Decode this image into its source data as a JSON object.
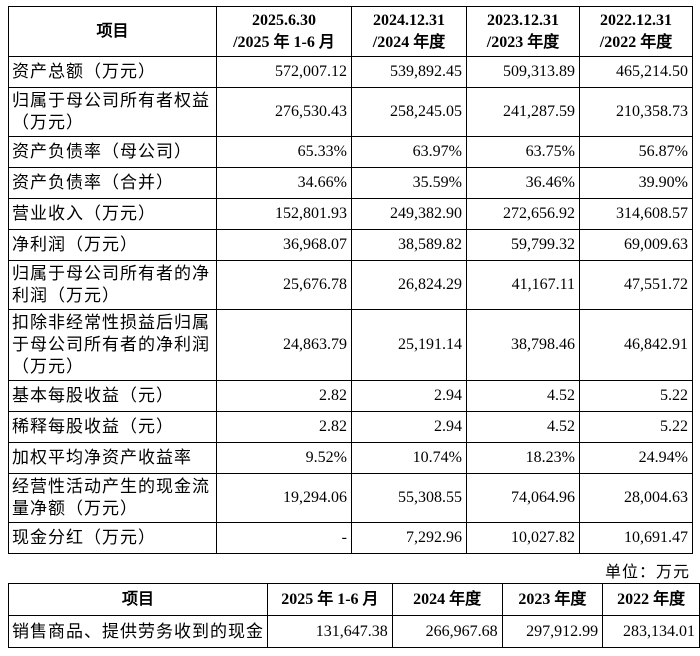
{
  "table": {
    "headers": [
      "项目",
      [
        "2025.6.30",
        "/2025 年 1-6 月"
      ],
      [
        "2024.12.31",
        "/2024 年度"
      ],
      [
        "2023.12.31",
        "/2023 年度"
      ],
      [
        "2022.12.31",
        "/2022 年度"
      ]
    ],
    "rows": [
      [
        "资产总额（万元）",
        "572,007.12",
        "539,892.45",
        "509,313.89",
        "465,214.50"
      ],
      [
        "归属于母公司所有者权益（万元）",
        "276,530.43",
        "258,245.05",
        "241,287.59",
        "210,358.73"
      ],
      [
        "资产负债率（母公司）",
        "65.33%",
        "63.97%",
        "63.75%",
        "56.87%"
      ],
      [
        "资产负债率（合并）",
        "34.66%",
        "35.59%",
        "36.46%",
        "39.90%"
      ],
      [
        "营业收入（万元）",
        "152,801.93",
        "249,382.90",
        "272,656.92",
        "314,608.57"
      ],
      [
        "净利润（万元）",
        "36,968.07",
        "38,589.82",
        "59,799.32",
        "69,009.63"
      ],
      [
        "归属于母公司所有者的净利润（万元）",
        "25,676.78",
        "26,824.29",
        "41,167.11",
        "47,551.72"
      ],
      [
        "扣除非经常性损益后归属于母公司所有者的净利润（万元）",
        "24,863.79",
        "25,191.14",
        "38,798.46",
        "46,842.91"
      ],
      [
        "基本每股收益（元）",
        "2.82",
        "2.94",
        "4.52",
        "5.22"
      ],
      [
        "稀释每股收益（元）",
        "2.82",
        "2.94",
        "4.52",
        "5.22"
      ],
      [
        "加权平均净资产收益率",
        "9.52%",
        "10.74%",
        "18.23%",
        "24.94%"
      ],
      [
        "经营性活动产生的现金流量净额（万元）",
        "19,294.06",
        "55,308.55",
        "74,064.96",
        "28,004.63"
      ],
      [
        "现金分红（万元）",
        "-",
        "7,292.96",
        "10,027.82",
        "10,691.47"
      ]
    ]
  },
  "unit_note": "单位：万元",
  "table2": {
    "headers": [
      "项目",
      "2025 年 1-6 月",
      "2024 年度",
      "2023 年度",
      "2022 年度"
    ],
    "rows": [
      [
        "销售商品、提供劳务收到的现金",
        "131,647.38",
        "266,967.68",
        "297,912.99",
        "283,134.01"
      ]
    ]
  }
}
